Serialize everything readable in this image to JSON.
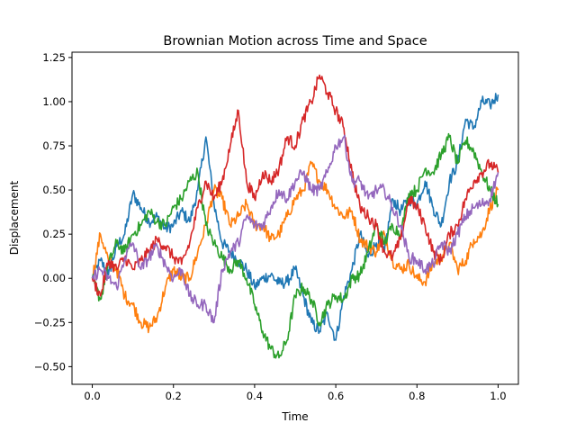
{
  "chart_data": {
    "type": "line",
    "title": "Brownian Motion across Time and Space",
    "xlabel": "Time",
    "ylabel": "Displacement",
    "xlim": [
      -0.05,
      1.05
    ],
    "ylim": [
      -0.6,
      1.28
    ],
    "xticks": [
      0.0,
      0.2,
      0.4,
      0.6,
      0.8,
      1.0
    ],
    "xtick_labels": [
      "0.0",
      "0.2",
      "0.4",
      "0.6",
      "0.8",
      "1.0"
    ],
    "yticks": [
      -0.5,
      -0.25,
      0.0,
      0.25,
      0.5,
      0.75,
      1.0,
      1.25
    ],
    "ytick_labels": [
      "−0.50",
      "−0.25",
      "0.00",
      "0.25",
      "0.50",
      "0.75",
      "1.00",
      "1.25"
    ],
    "grid": false,
    "legend": null,
    "series": [
      {
        "color": "#1f77b4",
        "x": [
          0.0,
          0.02,
          0.04,
          0.06,
          0.08,
          0.1,
          0.12,
          0.14,
          0.16,
          0.18,
          0.2,
          0.22,
          0.24,
          0.26,
          0.28,
          0.3,
          0.32,
          0.34,
          0.36,
          0.38,
          0.4,
          0.42,
          0.44,
          0.46,
          0.48,
          0.5,
          0.52,
          0.54,
          0.56,
          0.58,
          0.6,
          0.62,
          0.64,
          0.66,
          0.68,
          0.7,
          0.72,
          0.74,
          0.76,
          0.78,
          0.8,
          0.82,
          0.84,
          0.86,
          0.88,
          0.9,
          0.92,
          0.94,
          0.96,
          0.98,
          1.0
        ],
        "y": [
          0.0,
          0.1,
          0.02,
          0.18,
          0.25,
          0.48,
          0.4,
          0.32,
          0.35,
          0.28,
          0.3,
          0.38,
          0.32,
          0.5,
          0.8,
          0.42,
          0.2,
          0.15,
          0.1,
          0.05,
          -0.05,
          0.0,
          0.02,
          -0.03,
          -0.02,
          0.05,
          -0.1,
          -0.25,
          -0.3,
          -0.2,
          -0.35,
          -0.1,
          0.05,
          0.25,
          0.12,
          0.2,
          0.15,
          0.45,
          0.38,
          0.45,
          0.42,
          0.55,
          0.4,
          0.3,
          0.55,
          0.65,
          0.9,
          0.85,
          1.0,
          0.98,
          1.04
        ]
      },
      {
        "color": "#ff7f0e",
        "x": [
          0.0,
          0.02,
          0.04,
          0.06,
          0.08,
          0.1,
          0.12,
          0.14,
          0.16,
          0.18,
          0.2,
          0.22,
          0.24,
          0.26,
          0.28,
          0.3,
          0.32,
          0.34,
          0.36,
          0.38,
          0.4,
          0.42,
          0.44,
          0.46,
          0.48,
          0.5,
          0.52,
          0.54,
          0.56,
          0.58,
          0.6,
          0.62,
          0.64,
          0.66,
          0.68,
          0.7,
          0.72,
          0.74,
          0.76,
          0.78,
          0.8,
          0.82,
          0.84,
          0.86,
          0.88,
          0.9,
          0.92,
          0.94,
          0.96,
          0.98,
          1.0
        ],
        "y": [
          0.0,
          0.25,
          0.1,
          0.05,
          -0.1,
          -0.15,
          -0.25,
          -0.28,
          -0.22,
          -0.05,
          0.05,
          0.0,
          0.0,
          0.15,
          0.3,
          0.5,
          0.45,
          0.3,
          0.35,
          0.42,
          0.3,
          0.3,
          0.22,
          0.25,
          0.35,
          0.45,
          0.5,
          0.65,
          0.55,
          0.5,
          0.4,
          0.35,
          0.38,
          0.22,
          0.18,
          0.15,
          0.25,
          0.1,
          0.05,
          0.08,
          0.0,
          -0.02,
          0.08,
          0.12,
          0.2,
          0.05,
          0.1,
          0.22,
          0.25,
          0.4,
          0.5
        ]
      },
      {
        "color": "#2ca02c",
        "x": [
          0.0,
          0.02,
          0.04,
          0.06,
          0.08,
          0.1,
          0.12,
          0.14,
          0.16,
          0.18,
          0.2,
          0.22,
          0.24,
          0.26,
          0.28,
          0.3,
          0.32,
          0.34,
          0.36,
          0.38,
          0.4,
          0.42,
          0.44,
          0.46,
          0.48,
          0.5,
          0.52,
          0.54,
          0.56,
          0.58,
          0.6,
          0.62,
          0.64,
          0.66,
          0.68,
          0.7,
          0.72,
          0.74,
          0.76,
          0.78,
          0.8,
          0.82,
          0.84,
          0.86,
          0.88,
          0.9,
          0.92,
          0.94,
          0.96,
          0.98,
          1.0
        ],
        "y": [
          0.0,
          -0.12,
          0.08,
          0.2,
          0.15,
          0.25,
          0.3,
          0.38,
          0.32,
          0.3,
          0.4,
          0.45,
          0.55,
          0.6,
          0.3,
          0.2,
          0.12,
          0.05,
          0.1,
          0.0,
          -0.15,
          -0.3,
          -0.4,
          -0.45,
          -0.35,
          -0.1,
          -0.05,
          -0.12,
          -0.25,
          -0.15,
          -0.1,
          -0.12,
          0.0,
          0.02,
          0.15,
          0.3,
          0.2,
          0.3,
          0.25,
          0.48,
          0.5,
          0.62,
          0.6,
          0.7,
          0.8,
          0.65,
          0.78,
          0.72,
          0.6,
          0.5,
          0.42
        ]
      },
      {
        "color": "#d62728",
        "x": [
          0.0,
          0.02,
          0.04,
          0.06,
          0.08,
          0.1,
          0.12,
          0.14,
          0.16,
          0.18,
          0.2,
          0.22,
          0.24,
          0.26,
          0.28,
          0.3,
          0.32,
          0.34,
          0.36,
          0.38,
          0.4,
          0.42,
          0.44,
          0.46,
          0.48,
          0.5,
          0.52,
          0.54,
          0.56,
          0.58,
          0.6,
          0.62,
          0.64,
          0.66,
          0.68,
          0.7,
          0.72,
          0.74,
          0.76,
          0.78,
          0.8,
          0.82,
          0.84,
          0.86,
          0.88,
          0.9,
          0.92,
          0.94,
          0.96,
          0.98,
          1.0
        ],
        "y": [
          0.0,
          -0.1,
          0.1,
          0.05,
          0.12,
          0.05,
          0.1,
          0.15,
          0.22,
          0.18,
          0.12,
          0.08,
          0.2,
          0.4,
          0.55,
          0.45,
          0.55,
          0.75,
          0.95,
          0.55,
          0.45,
          0.6,
          0.55,
          0.62,
          0.8,
          0.75,
          0.9,
          1.0,
          1.15,
          1.05,
          0.95,
          0.85,
          0.6,
          0.4,
          0.35,
          0.3,
          0.15,
          0.12,
          0.22,
          0.45,
          0.4,
          0.3,
          0.15,
          0.1,
          0.25,
          0.3,
          0.45,
          0.55,
          0.6,
          0.65,
          0.6
        ]
      },
      {
        "color": "#9467bd",
        "x": [
          0.0,
          0.02,
          0.04,
          0.06,
          0.08,
          0.1,
          0.12,
          0.14,
          0.16,
          0.18,
          0.2,
          0.22,
          0.24,
          0.26,
          0.28,
          0.3,
          0.32,
          0.34,
          0.36,
          0.38,
          0.4,
          0.42,
          0.44,
          0.46,
          0.48,
          0.5,
          0.52,
          0.54,
          0.56,
          0.58,
          0.6,
          0.62,
          0.64,
          0.66,
          0.68,
          0.7,
          0.72,
          0.74,
          0.76,
          0.78,
          0.8,
          0.82,
          0.84,
          0.86,
          0.88,
          0.9,
          0.92,
          0.94,
          0.96,
          0.98,
          1.0
        ],
        "y": [
          0.0,
          0.05,
          0.0,
          -0.05,
          0.12,
          0.2,
          0.05,
          0.12,
          0.18,
          0.08,
          0.0,
          0.05,
          -0.1,
          -0.15,
          -0.15,
          -0.25,
          0.05,
          0.15,
          0.2,
          0.35,
          0.3,
          0.3,
          0.4,
          0.5,
          0.45,
          0.55,
          0.6,
          0.5,
          0.5,
          0.6,
          0.75,
          0.8,
          0.55,
          0.55,
          0.45,
          0.5,
          0.5,
          0.4,
          0.3,
          0.12,
          0.1,
          0.05,
          0.08,
          0.2,
          0.15,
          0.25,
          0.35,
          0.4,
          0.42,
          0.45,
          0.6
        ]
      }
    ]
  }
}
